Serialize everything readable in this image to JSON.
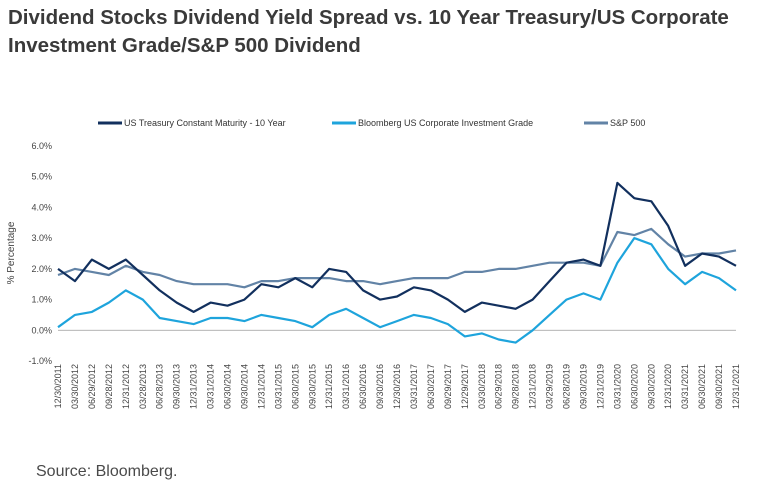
{
  "title": "Dividend Stocks Dividend Yield Spread vs. 10 Year Treasury/US Corporate Investment Grade/S&P 500 Dividend",
  "source": "Source: Bloomberg.",
  "chart_data": {
    "type": "line",
    "title": "Dividend Stocks Dividend Yield Spread vs. 10 Year Treasury/US Corporate Investment Grade/S&P 500 Dividend",
    "xlabel": "",
    "ylabel": "% Percentage",
    "ylim": [
      -1.0,
      6.0
    ],
    "yticks": [
      "-1.0%",
      "0.0%",
      "1.0%",
      "2.0%",
      "3.0%",
      "4.0%",
      "5.0%",
      "6.0%"
    ],
    "grid": false,
    "legend_position": "top",
    "categories": [
      "12/30/2011",
      "03/30/2012",
      "06/29/2012",
      "09/28/2012",
      "12/31/2012",
      "03/28/2013",
      "06/28/2013",
      "09/30/2013",
      "12/31/2013",
      "03/31/2014",
      "06/30/2014",
      "09/30/2014",
      "12/31/2014",
      "03/31/2015",
      "06/30/2015",
      "09/30/2015",
      "12/31/2015",
      "03/31/2016",
      "06/30/2016",
      "09/30/2016",
      "12/30/2016",
      "03/31/2017",
      "06/30/2017",
      "09/29/2017",
      "12/29/2017",
      "03/30/2018",
      "06/29/2018",
      "09/28/2018",
      "12/31/2018",
      "03/29/2019",
      "06/28/2019",
      "09/30/2019",
      "12/31/2019",
      "03/31/2020",
      "06/30/2020",
      "09/30/2020",
      "12/31/2020",
      "03/31/2021",
      "06/30/2021",
      "09/30/2021",
      "12/31/2021"
    ],
    "series": [
      {
        "name": "US Treasury Constant Maturity - 10 Year",
        "color": "#12305e",
        "values": [
          2.0,
          1.6,
          2.3,
          2.0,
          2.3,
          1.8,
          1.3,
          0.9,
          0.6,
          0.9,
          0.8,
          1.0,
          1.5,
          1.4,
          1.7,
          1.4,
          2.0,
          1.9,
          1.3,
          1.0,
          1.1,
          1.4,
          1.3,
          1.0,
          0.6,
          0.9,
          0.8,
          0.7,
          1.0,
          1.6,
          2.2,
          2.3,
          2.1,
          4.8,
          4.3,
          4.2,
          3.4,
          2.1,
          2.5,
          2.4,
          2.1
        ]
      },
      {
        "name": "Bloomberg US Corporate Investment Grade",
        "color": "#1ea4dc",
        "values": [
          0.1,
          0.5,
          0.6,
          0.9,
          1.3,
          1.0,
          0.4,
          0.3,
          0.2,
          0.4,
          0.4,
          0.3,
          0.5,
          0.4,
          0.3,
          0.1,
          0.5,
          0.7,
          0.4,
          0.1,
          0.3,
          0.5,
          0.4,
          0.2,
          -0.2,
          -0.1,
          -0.3,
          -0.4,
          0.0,
          0.5,
          1.0,
          1.2,
          1.0,
          2.2,
          3.0,
          2.8,
          2.0,
          1.5,
          1.9,
          1.7,
          1.3
        ]
      },
      {
        "name": "S&P 500",
        "color": "#6283a6",
        "values": [
          1.8,
          2.0,
          1.9,
          1.8,
          2.1,
          1.9,
          1.8,
          1.6,
          1.5,
          1.5,
          1.5,
          1.4,
          1.6,
          1.6,
          1.7,
          1.7,
          1.7,
          1.6,
          1.6,
          1.5,
          1.6,
          1.7,
          1.7,
          1.7,
          1.9,
          1.9,
          2.0,
          2.0,
          2.1,
          2.2,
          2.2,
          2.2,
          2.1,
          3.2,
          3.1,
          3.3,
          2.8,
          2.4,
          2.5,
          2.5,
          2.6
        ]
      }
    ]
  }
}
